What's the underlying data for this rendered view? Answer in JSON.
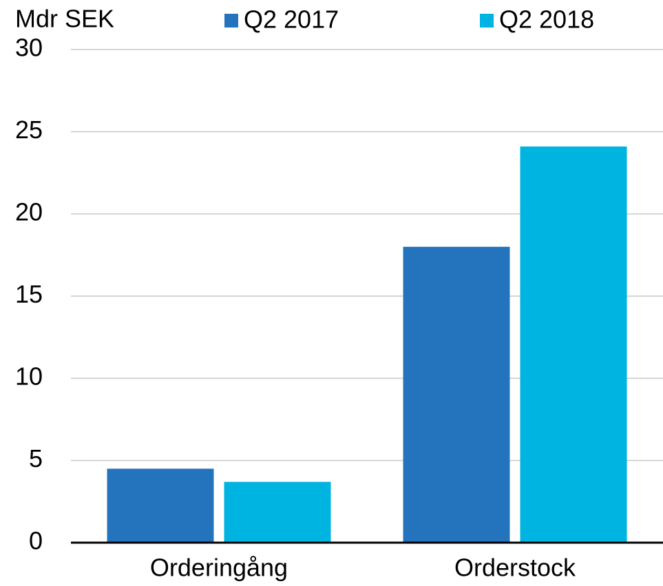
{
  "chart_data": {
    "type": "bar",
    "y_label": "Mdr SEK",
    "categories": [
      "Orderingång",
      "Orderstock"
    ],
    "series": [
      {
        "name": "Q2 2017",
        "color": "#2474bd",
        "values": [
          4.5,
          18.0
        ]
      },
      {
        "name": "Q2 2018",
        "color": "#00b4e1",
        "values": [
          3.7,
          24.1
        ]
      }
    ],
    "ylim": [
      0,
      30
    ],
    "yticks": [
      0,
      5,
      10,
      15,
      20,
      25,
      30
    ],
    "grid": true,
    "legend": "top"
  }
}
